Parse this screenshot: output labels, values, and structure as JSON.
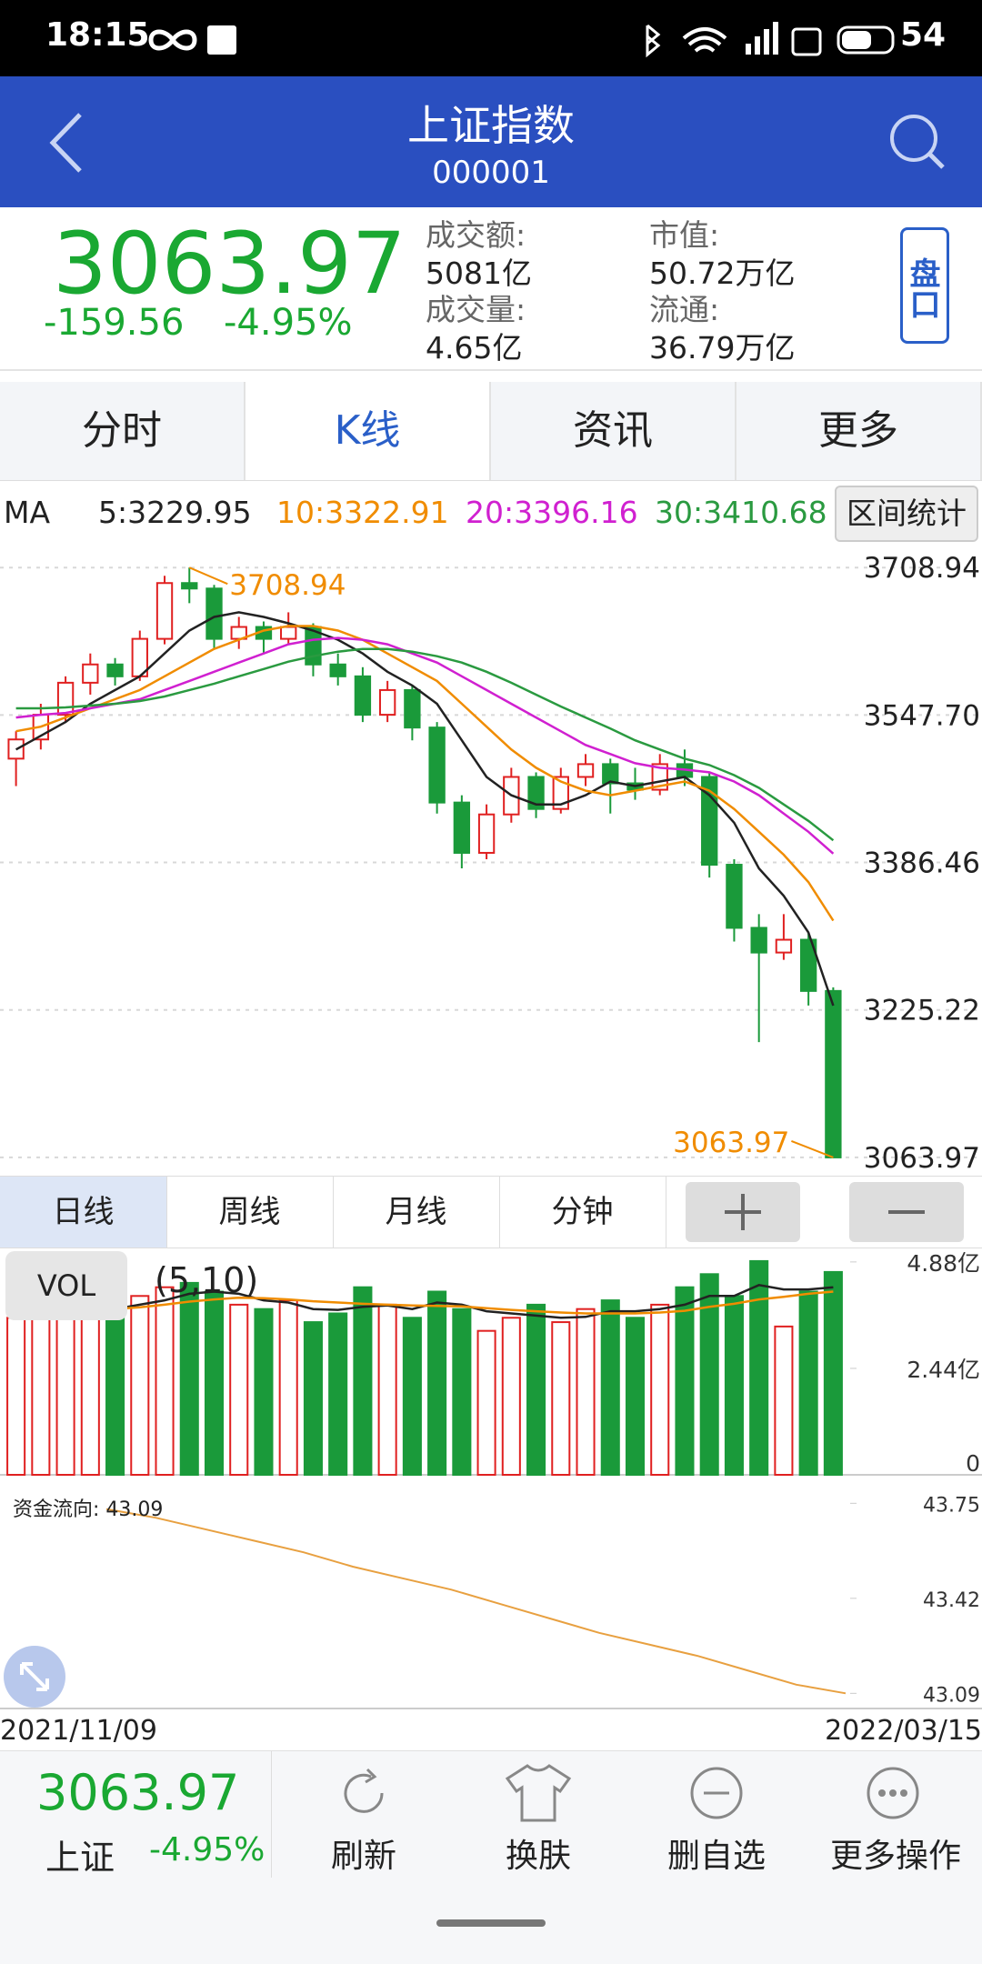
{
  "status_bar": {
    "time": "18:15",
    "battery": "54"
  },
  "header": {
    "title": "上证指数",
    "code": "000001"
  },
  "quote": {
    "price": "3063.97",
    "change": "-159.56",
    "change_pct": "-4.95%",
    "stats": [
      {
        "label": "成交额:",
        "value": "5081亿"
      },
      {
        "label": "成交量:",
        "value": "4.65亿"
      },
      {
        "label": "市值:",
        "value": "50.72万亿"
      },
      {
        "label": "流通:",
        "value": "36.79万亿"
      }
    ],
    "button": "盘口"
  },
  "tabs": [
    "分时",
    "K线",
    "资讯",
    "更多"
  ],
  "active_tab": 1,
  "ma_legend": {
    "label": "MA",
    "items": [
      {
        "text": "5:3229.95",
        "color": "#222222"
      },
      {
        "text": "10:3322.91",
        "color": "#f08c00"
      },
      {
        "text": "20:3396.16",
        "color": "#d020d0"
      },
      {
        "text": "30:3410.68",
        "color": "#2a9a40"
      }
    ],
    "button": "区间统计"
  },
  "chart_data": [
    {
      "type": "candlestick",
      "up_color": "#e02020",
      "down_color": "#1a9a3a",
      "ylim": [
        3047,
        3733
      ],
      "yticks": [
        3708.94,
        {
          "value": 3547.7,
          "label": "3547.70"
        },
        3386.46,
        3225.22,
        3063.97
      ],
      "grid": true,
      "annotations": [
        {
          "text": "3708.94",
          "color": "#f08c00"
        },
        {
          "text": "3063.97",
          "color": "#f08c00"
        }
      ],
      "candles": [
        [
          3500,
          3530,
          3470,
          3521
        ],
        [
          3521,
          3560,
          3510,
          3548
        ],
        [
          3548,
          3590,
          3540,
          3583
        ],
        [
          3583,
          3615,
          3570,
          3603
        ],
        [
          3603,
          3610,
          3580,
          3590
        ],
        [
          3590,
          3640,
          3585,
          3631
        ],
        [
          3631,
          3700,
          3625,
          3692
        ],
        [
          3692,
          3708.94,
          3670,
          3686
        ],
        [
          3686,
          3690,
          3620,
          3631
        ],
        [
          3631,
          3655,
          3620,
          3644
        ],
        [
          3644,
          3650,
          3615,
          3631
        ],
        [
          3631,
          3660,
          3625,
          3644
        ],
        [
          3644,
          3648,
          3590,
          3603
        ],
        [
          3603,
          3615,
          3580,
          3590
        ],
        [
          3590,
          3600,
          3540,
          3548
        ],
        [
          3548,
          3585,
          3540,
          3575
        ],
        [
          3575,
          3580,
          3520,
          3534
        ],
        [
          3534,
          3540,
          3440,
          3452
        ],
        [
          3452,
          3460,
          3380,
          3397
        ],
        [
          3397,
          3450,
          3390,
          3439
        ],
        [
          3439,
          3490,
          3430,
          3480
        ],
        [
          3480,
          3485,
          3435,
          3445
        ],
        [
          3445,
          3490,
          3440,
          3480
        ],
        [
          3480,
          3505,
          3470,
          3494
        ],
        [
          3494,
          3500,
          3440,
          3473
        ],
        [
          3473,
          3490,
          3455,
          3466
        ],
        [
          3466,
          3505,
          3460,
          3494
        ],
        [
          3494,
          3510,
          3470,
          3480
        ],
        [
          3480,
          3485,
          3370,
          3384
        ],
        [
          3384,
          3390,
          3300,
          3315
        ],
        [
          3315,
          3330,
          3190,
          3288
        ],
        [
          3288,
          3330,
          3280,
          3302
        ],
        [
          3302,
          3310,
          3230,
          3246
        ],
        [
          3246,
          3250,
          3063.97,
          3063.97
        ]
      ],
      "series": [
        {
          "color": "#222222",
          "values": [
            3510,
            3525,
            3540,
            3560,
            3575,
            3590,
            3615,
            3640,
            3655,
            3660,
            3655,
            3648,
            3640,
            3630,
            3615,
            3595,
            3580,
            3560,
            3520,
            3480,
            3460,
            3450,
            3450,
            3460,
            3475,
            3470,
            3475,
            3480,
            3460,
            3430,
            3380,
            3350,
            3310,
            3229.95
          ]
        },
        {
          "color": "#f08c00",
          "values": [
            3530,
            3535,
            3545,
            3555,
            3565,
            3575,
            3590,
            3605,
            3620,
            3630,
            3640,
            3645,
            3645,
            3640,
            3630,
            3615,
            3600,
            3585,
            3560,
            3535,
            3510,
            3490,
            3475,
            3465,
            3460,
            3465,
            3470,
            3475,
            3465,
            3445,
            3420,
            3395,
            3365,
            3322.91
          ]
        },
        {
          "color": "#d020d0",
          "values": [
            3545,
            3548,
            3550,
            3555,
            3560,
            3565,
            3575,
            3585,
            3595,
            3605,
            3615,
            3625,
            3630,
            3632,
            3630,
            3625,
            3615,
            3605,
            3590,
            3575,
            3560,
            3545,
            3530,
            3515,
            3505,
            3495,
            3490,
            3488,
            3485,
            3475,
            3460,
            3440,
            3420,
            3396.16
          ]
        },
        {
          "color": "#2a9a40",
          "values": [
            3555,
            3555,
            3556,
            3558,
            3560,
            3563,
            3568,
            3575,
            3582,
            3590,
            3598,
            3606,
            3612,
            3617,
            3620,
            3620,
            3617,
            3612,
            3605,
            3595,
            3583,
            3570,
            3557,
            3545,
            3533,
            3520,
            3510,
            3500,
            3493,
            3482,
            3468,
            3450,
            3432,
            3410.68
          ]
        }
      ]
    },
    {
      "type": "bar",
      "label": "VOL",
      "params": "(5,10)",
      "ylim": [
        0,
        5.19
      ],
      "yticks": [
        {
          "value": 4.88,
          "label": "4.88亿"
        },
        {
          "value": 2.44,
          "label": "2.44亿"
        },
        0
      ],
      "values": [
        3.6,
        3.9,
        4.0,
        3.7,
        3.8,
        4.1,
        4.3,
        4.4,
        4.2,
        3.9,
        3.8,
        4.0,
        3.5,
        3.7,
        4.3,
        3.9,
        3.6,
        4.2,
        3.8,
        3.3,
        3.6,
        3.9,
        3.5,
        3.8,
        4.0,
        3.6,
        3.9,
        4.3,
        4.6,
        4.1,
        4.9,
        3.4,
        4.2,
        4.65
      ],
      "series": [
        {
          "color": "#222222",
          "values": [
            3.8,
            3.8,
            3.85,
            3.85,
            3.8,
            3.9,
            4.0,
            4.15,
            4.2,
            4.15,
            4.0,
            3.95,
            3.8,
            3.78,
            3.85,
            3.88,
            3.8,
            3.95,
            3.9,
            3.75,
            3.7,
            3.65,
            3.6,
            3.62,
            3.75,
            3.75,
            3.8,
            3.9,
            4.1,
            4.1,
            4.35,
            4.25,
            4.25,
            4.3
          ]
        },
        {
          "color": "#f08c00",
          "values": [
            3.7,
            3.72,
            3.75,
            3.78,
            3.8,
            3.84,
            3.9,
            3.97,
            4.02,
            4.06,
            4.05,
            4.02,
            3.98,
            3.95,
            3.92,
            3.9,
            3.88,
            3.87,
            3.86,
            3.82,
            3.78,
            3.75,
            3.72,
            3.7,
            3.7,
            3.7,
            3.72,
            3.76,
            3.85,
            3.92,
            4.02,
            4.08,
            4.15,
            4.2
          ]
        }
      ]
    },
    {
      "type": "line",
      "label": "资金流向: 43.09",
      "color": "#e8a040",
      "ylim": [
        43.05,
        43.83
      ],
      "yticks": [
        43.75,
        43.42,
        43.09
      ],
      "values": [
        43.73,
        43.7,
        43.66,
        43.62,
        43.58,
        43.53,
        43.49,
        43.45,
        43.4,
        43.35,
        43.3,
        43.26,
        43.22,
        43.17,
        43.12,
        43.09
      ]
    }
  ],
  "period_tabs": [
    "日线",
    "周线",
    "月线",
    "分钟"
  ],
  "dates": [
    "2021/11/09",
    "2022/03/15"
  ],
  "footer": {
    "price": "3063.97",
    "name": "上证",
    "change_pct": "-4.95%",
    "actions": [
      "刷新",
      "换肤",
      "删自选",
      "更多操作"
    ]
  }
}
